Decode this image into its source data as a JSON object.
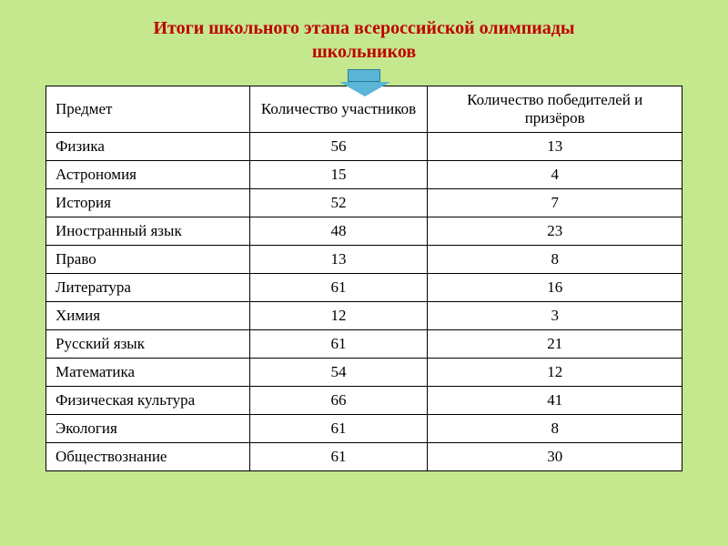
{
  "title": {
    "line1": "Итоги школьного  этапа всероссийской олимпиады",
    "line2": "школьников"
  },
  "table": {
    "background_color": "#ffffff",
    "border_color": "#000000",
    "header_fontsize": 17,
    "cell_fontsize": 17,
    "columns": [
      {
        "label": "Предмет",
        "width": "32%",
        "align": "left"
      },
      {
        "label": "Количество участников",
        "width": "28%",
        "align": "center"
      },
      {
        "label": "Количество победителей и призёров",
        "width": "40%",
        "align": "center"
      }
    ],
    "rows": [
      {
        "subject": "Физика",
        "participants": "56",
        "winners": "13"
      },
      {
        "subject": "Астрономия",
        "participants": "15",
        "winners": "4"
      },
      {
        "subject": "История",
        "participants": "52",
        "winners": "7"
      },
      {
        "subject": "Иностранный язык",
        "participants": "48",
        "winners": "23"
      },
      {
        "subject": "Право",
        "participants": "13",
        "winners": "8"
      },
      {
        "subject": "Литература",
        "participants": "61",
        "winners": "16"
      },
      {
        "subject": "Химия",
        "participants": "12",
        "winners": "3"
      },
      {
        "subject": "Русский язык",
        "participants": "61",
        "winners": "21"
      },
      {
        "subject": "Математика",
        "participants": "54",
        "winners": "12"
      },
      {
        "subject": "Физическая культура",
        "participants": "66",
        "winners": "41"
      },
      {
        "subject": "Экология",
        "participants": "61",
        "winners": "8"
      },
      {
        "subject": "Обществознание",
        "participants": "61",
        "winners": "30"
      }
    ]
  },
  "colors": {
    "background": "#c5e88e",
    "title_color": "#c00000",
    "arrow_fill": "#5bb5d6",
    "arrow_border": "#2a7a9a"
  }
}
